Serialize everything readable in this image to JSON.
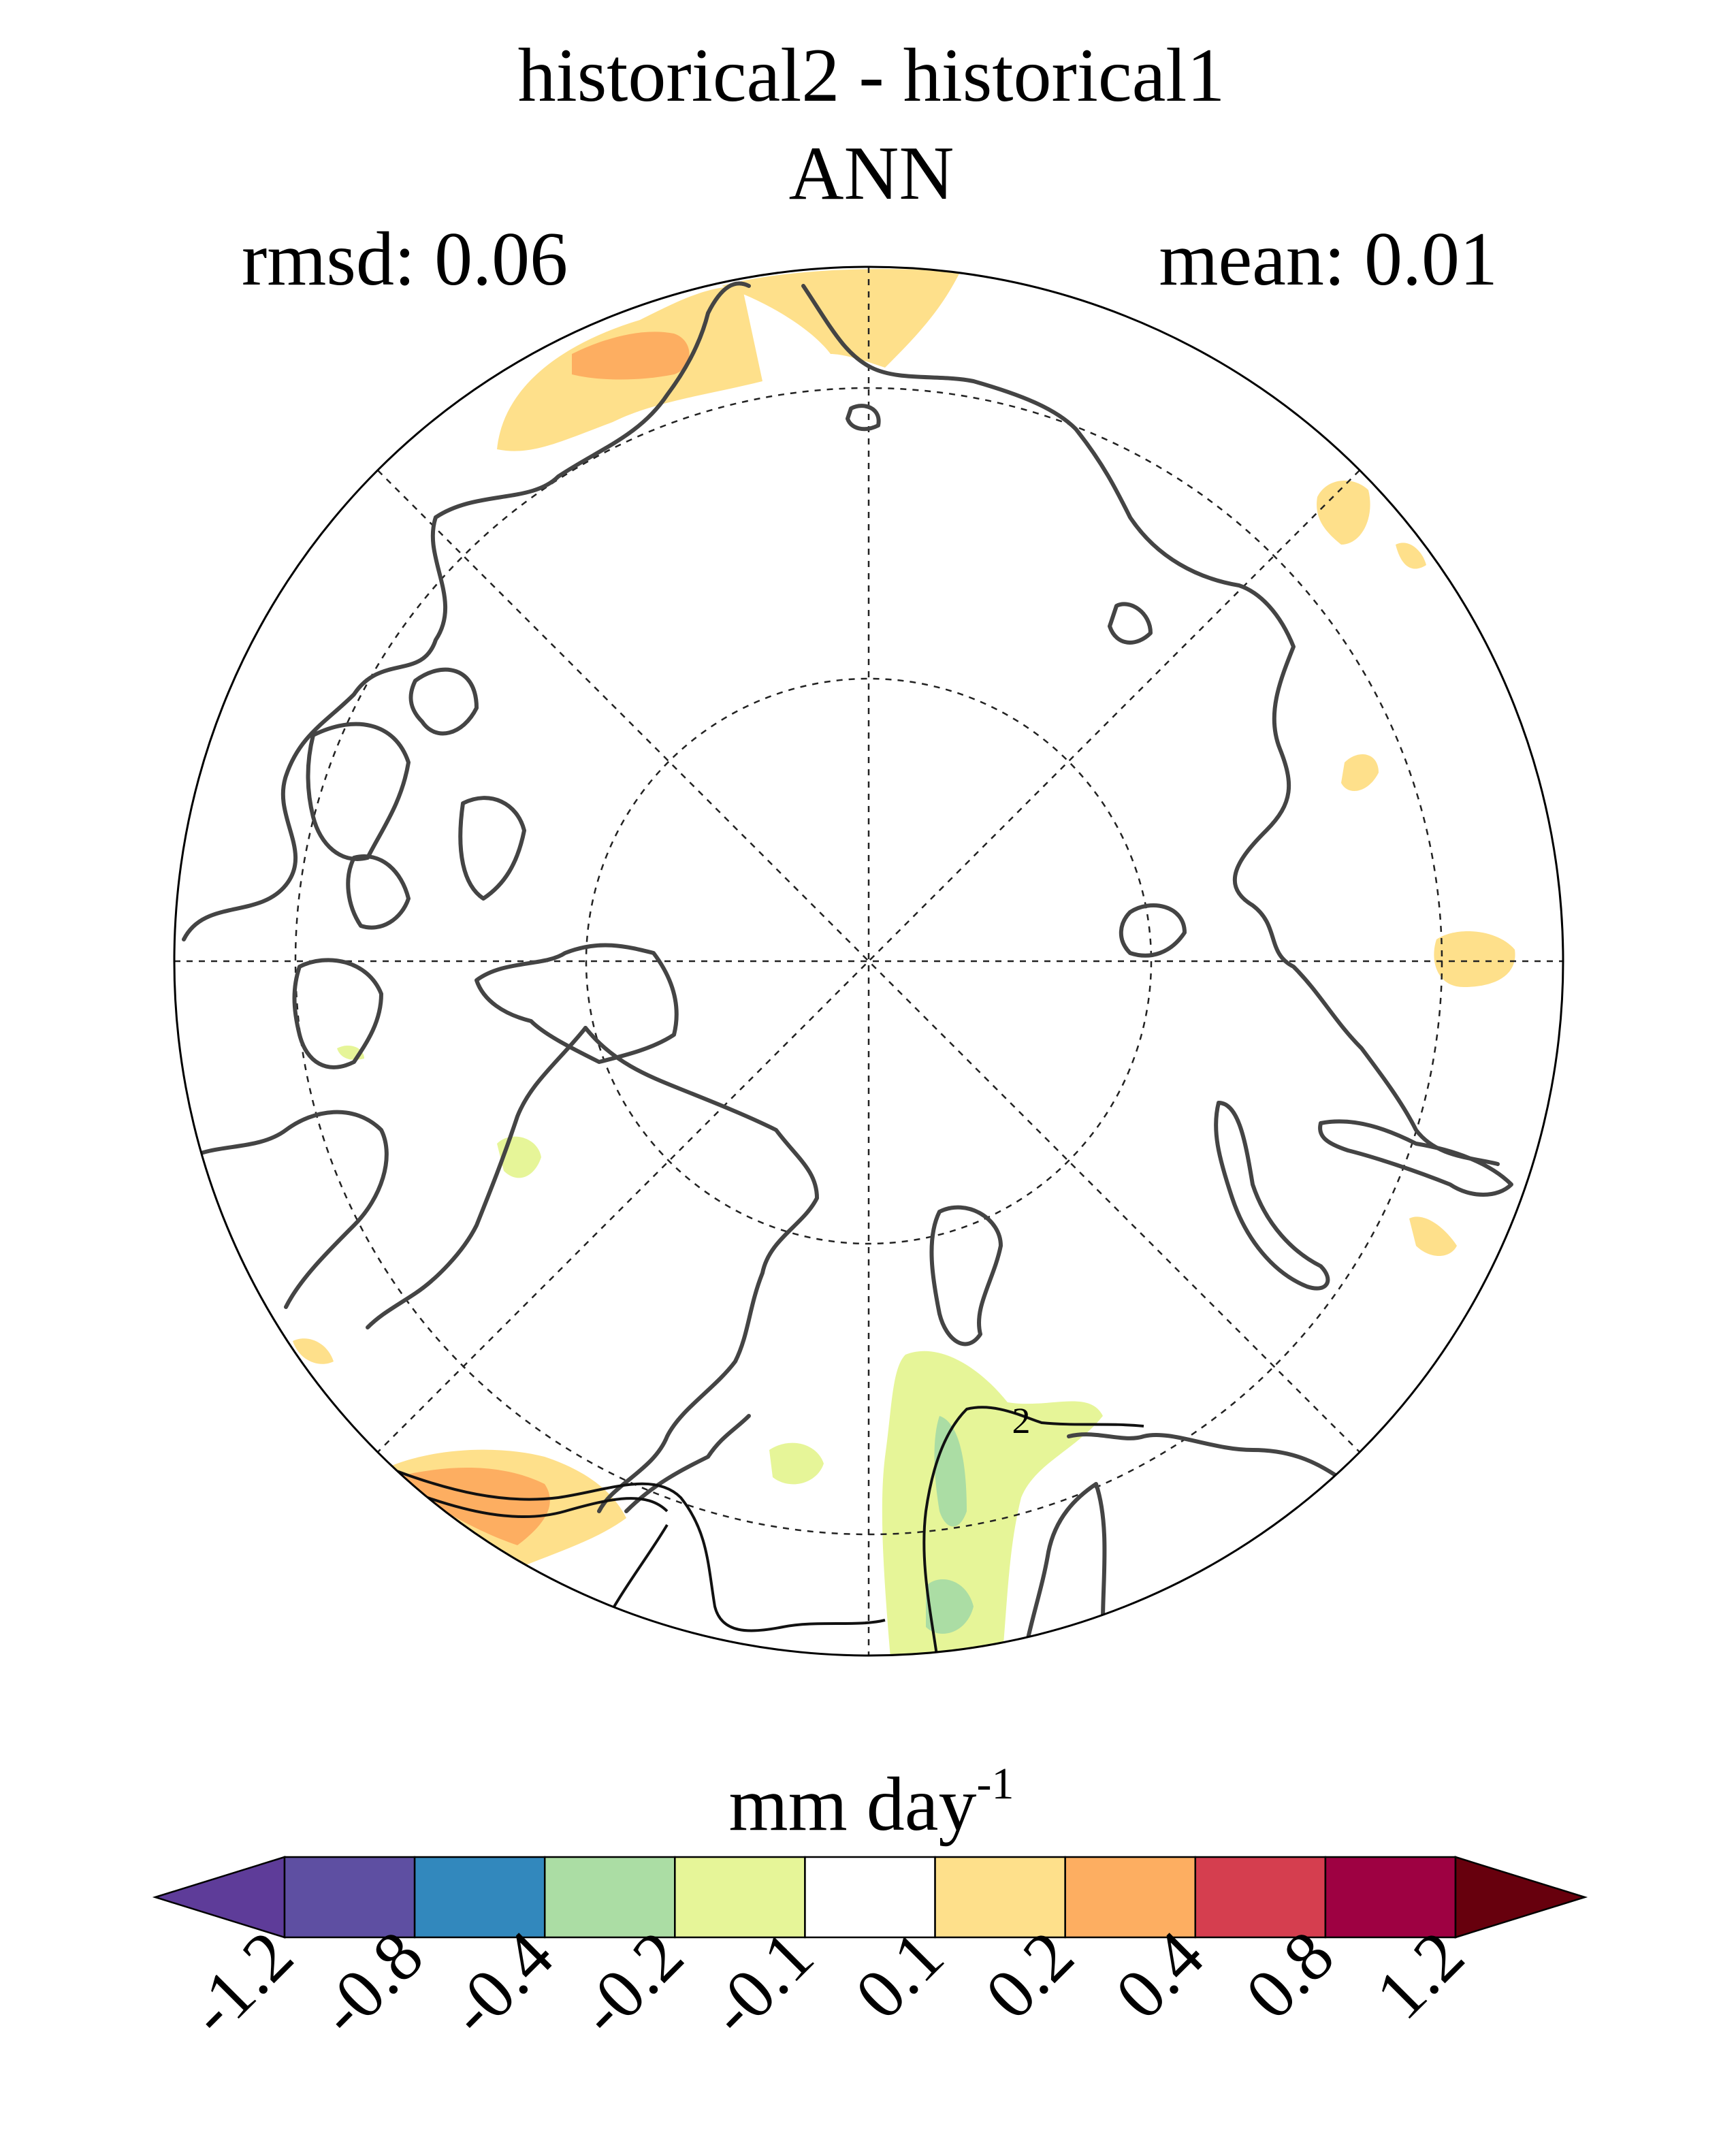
{
  "title": {
    "line1": "historical2 - historical1",
    "line2": "ANN",
    "rmsd": "rmsd: 0.06",
    "mean": "mean: 0.01"
  },
  "map": {
    "projection": "north-polar-stereographic",
    "contour_label": "2"
  },
  "colorbar": {
    "units_main": "mm day",
    "units_exp": "-1",
    "bins": [
      {
        "color": "#5e3c99"
      },
      {
        "color": "#5e4fa2"
      },
      {
        "color": "#3288bd"
      },
      {
        "color": "#abdda4"
      },
      {
        "color": "#e6f598"
      },
      {
        "color": "#ffffff"
      },
      {
        "color": "#fee08b"
      },
      {
        "color": "#fdae61"
      },
      {
        "color": "#d53e4f"
      },
      {
        "color": "#9e0142"
      },
      {
        "color": "#67000d"
      }
    ],
    "ticks": [
      "-1.2",
      "-0.8",
      "-0.4",
      "-0.2",
      "-0.1",
      "0.1",
      "0.2",
      "0.4",
      "0.8",
      "1.2"
    ]
  }
}
